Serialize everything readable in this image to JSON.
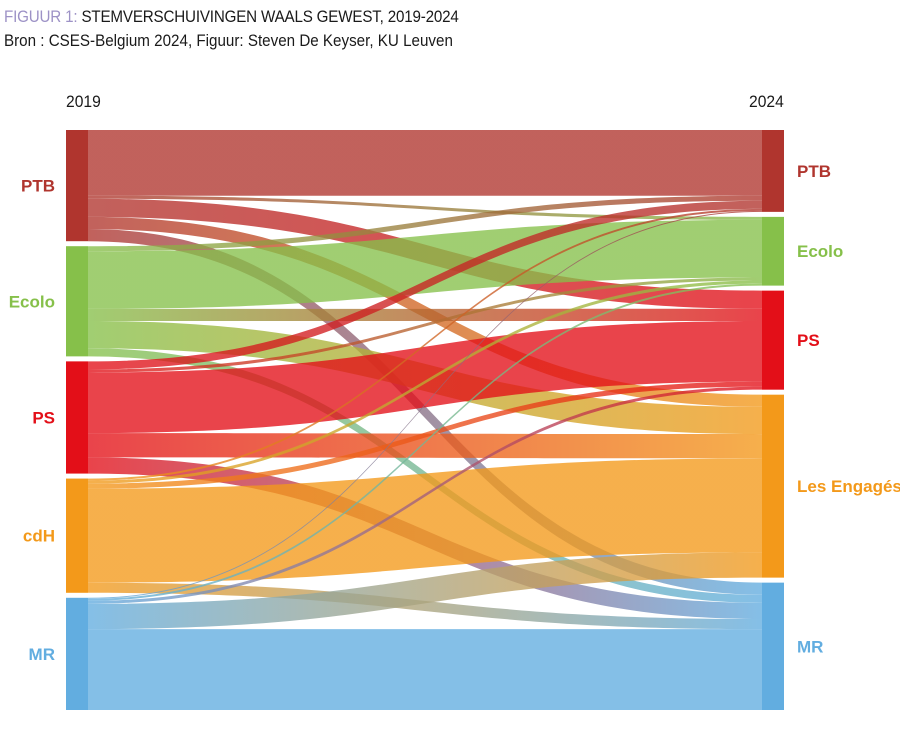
{
  "header": {
    "title_prefix": "FIGUUR 1:",
    "title": "STEMVERSCHUIVINGEN WAALS GEWEST, 2019-2024",
    "source": "Bron : CSES-Belgium 2024, Figuur: Steven De Keyser, KU Leuven"
  },
  "chart_data": {
    "type": "sankey",
    "title": "STEMVERSCHUIVINGEN WAALS GEWEST, 2019-2024",
    "left_label": "2019",
    "right_label": "2024",
    "left_nodes": [
      {
        "name": "PTB",
        "color": "#b0352e"
      },
      {
        "name": "Ecolo",
        "color": "#86c04a"
      },
      {
        "name": "PS",
        "color": "#e30f18"
      },
      {
        "name": "cdH",
        "color": "#f3991a"
      },
      {
        "name": "MR",
        "color": "#62ade0"
      }
    ],
    "right_nodes": [
      {
        "name": "PTB",
        "color": "#b0352e"
      },
      {
        "name": "Ecolo",
        "color": "#86c04a"
      },
      {
        "name": "PS",
        "color": "#e30f18"
      },
      {
        "name": "Les Engagés",
        "color": "#f3991a"
      },
      {
        "name": "MR",
        "color": "#62ade0"
      }
    ],
    "value_note": "relative flow sizes estimated from band widths (no values printed)",
    "flows": [
      [
        65,
        3,
        18,
        12,
        12
      ],
      [
        5,
        57,
        12,
        27,
        8
      ],
      [
        8,
        3,
        60,
        24,
        16
      ],
      [
        2,
        3,
        5,
        93,
        10
      ],
      [
        1,
        2,
        3,
        25,
        80
      ]
    ]
  }
}
